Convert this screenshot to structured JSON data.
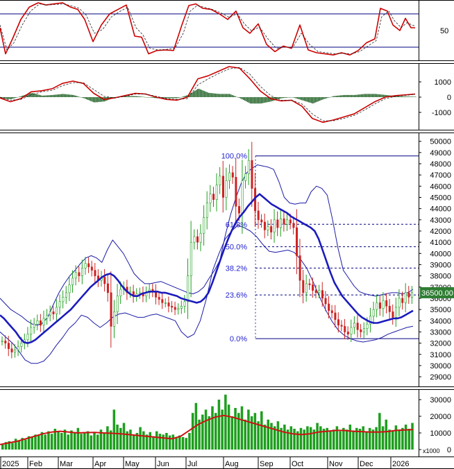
{
  "chart_data": [
    {
      "panel": "stochastic",
      "type": "line",
      "y_ticks": [
        "50"
      ],
      "ylim": [
        0,
        100
      ],
      "levels": [
        80,
        20
      ],
      "series": [
        {
          "name": "%K",
          "color": "#cc0000",
          "x": [
            0,
            8,
            18,
            30,
            42,
            55,
            66,
            78,
            90,
            102,
            112,
            122,
            134,
            146,
            158,
            170,
            182,
            194,
            204,
            214,
            226,
            238,
            250,
            262,
            272,
            282,
            292,
            304,
            316,
            328,
            340,
            350,
            360,
            372,
            384,
            396,
            408,
            420,
            432,
            444,
            456,
            468,
            480,
            492,
            504,
            516,
            528,
            540,
            548,
            558,
            566,
            576,
            584,
            592,
            598
          ],
          "values": [
            55,
            8,
            35,
            70,
            92,
            100,
            96,
            98,
            100,
            92,
            88,
            70,
            30,
            60,
            80,
            88,
            96,
            40,
            38,
            8,
            14,
            15,
            14,
            60,
            95,
            98,
            90,
            88,
            80,
            70,
            85,
            55,
            45,
            62,
            25,
            12,
            22,
            18,
            60,
            15,
            10,
            8,
            6,
            10,
            6,
            14,
            28,
            35,
            90,
            85,
            60,
            50,
            72,
            55,
            55
          ]
        },
        {
          "name": "%D",
          "color": "#222222",
          "dashed": true,
          "x": [
            0,
            10,
            20,
            32,
            44,
            57,
            68,
            80,
            92,
            104,
            114,
            124,
            136,
            148,
            160,
            172,
            184,
            196,
            206,
            216,
            228,
            240,
            252,
            264,
            274,
            284,
            294,
            306,
            318,
            330,
            342,
            352,
            362,
            374,
            386,
            398,
            410,
            422,
            434,
            446,
            458,
            470,
            482,
            494,
            506,
            518,
            530,
            542,
            550,
            560,
            568,
            578,
            586,
            594,
            598
          ],
          "values": [
            60,
            15,
            28,
            60,
            85,
            98,
            96,
            97,
            98,
            94,
            90,
            78,
            45,
            52,
            74,
            84,
            92,
            55,
            42,
            18,
            15,
            16,
            18,
            45,
            85,
            95,
            92,
            88,
            82,
            74,
            80,
            62,
            50,
            56,
            35,
            18,
            20,
            20,
            45,
            25,
            12,
            10,
            8,
            9,
            8,
            12,
            22,
            32,
            75,
            85,
            68,
            55,
            64,
            60,
            58
          ]
        }
      ]
    },
    {
      "panel": "macd",
      "type": "line",
      "y_ticks": [
        "1000",
        "0",
        "-1000"
      ],
      "ylim": [
        -2000,
        2000
      ],
      "series": [
        {
          "name": "MACD",
          "color": "#cc0000",
          "x": [
            0,
            15,
            30,
            45,
            60,
            75,
            90,
            105,
            120,
            135,
            150,
            165,
            180,
            195,
            210,
            225,
            240,
            255,
            270,
            285,
            300,
            315,
            330,
            345,
            360,
            375,
            390,
            405,
            420,
            435,
            450,
            465,
            480,
            495,
            510,
            525,
            540,
            555,
            570,
            585,
            598
          ],
          "values": [
            -50,
            -300,
            -100,
            350,
            420,
            550,
            900,
            1050,
            900,
            250,
            -150,
            -50,
            100,
            250,
            200,
            0,
            -150,
            -200,
            0,
            1200,
            1400,
            1700,
            2000,
            1900,
            1200,
            400,
            -100,
            -250,
            -200,
            -600,
            -1400,
            -1650,
            -1500,
            -1300,
            -1100,
            -700,
            -300,
            0,
            100,
            150,
            200
          ]
        },
        {
          "name": "Signal",
          "color": "#222222",
          "dashed": true,
          "x": [
            0,
            15,
            30,
            45,
            60,
            75,
            90,
            105,
            120,
            135,
            150,
            165,
            180,
            195,
            210,
            225,
            240,
            255,
            270,
            285,
            300,
            315,
            330,
            345,
            360,
            375,
            390,
            405,
            420,
            435,
            450,
            465,
            480,
            495,
            510,
            525,
            540,
            555,
            570,
            585,
            598
          ],
          "values": [
            0,
            -200,
            -150,
            150,
            350,
            450,
            750,
            950,
            950,
            500,
            50,
            -50,
            50,
            200,
            200,
            50,
            -100,
            -150,
            -100,
            800,
            1200,
            1550,
            1850,
            1950,
            1500,
            700,
            100,
            -200,
            -200,
            -450,
            -1100,
            -1550,
            -1550,
            -1400,
            -1200,
            -850,
            -450,
            -100,
            50,
            120,
            180
          ]
        }
      ]
    },
    {
      "panel": "price",
      "type": "candlestick",
      "y_ticks": [
        "50000",
        "49000",
        "48000",
        "47000",
        "46000",
        "45000",
        "44000",
        "43000",
        "42000",
        "41000",
        "40000",
        "39000",
        "38000",
        "37000",
        "36000",
        "35000",
        "34000",
        "33000",
        "32000",
        "31000",
        "30000",
        "29000"
      ],
      "ylim": [
        28200,
        50600
      ],
      "last_price_label": "36500.00",
      "last_price": 36500,
      "fibonacci": {
        "labels": [
          "100.0%",
          "61.8%",
          "50.0%",
          "38.2%",
          "23.6%",
          "0.0%"
        ],
        "levels": [
          48700,
          42600,
          40600,
          38700,
          36300,
          32400
        ]
      },
      "close": [
        32200,
        32000,
        31500,
        31200,
        31400,
        31700,
        32000,
        32300,
        32800,
        33400,
        33700,
        34000,
        33600,
        34200,
        34500,
        34800,
        34600,
        35200,
        35700,
        36100,
        36500,
        37200,
        37800,
        38300,
        38000,
        38700,
        39100,
        38800,
        38500,
        38000,
        37600,
        37900,
        37300,
        36500,
        33500,
        34800,
        36200,
        36800,
        37000,
        36500,
        36600,
        36200,
        36400,
        36500,
        36200,
        36500,
        36800,
        36600,
        36100,
        35900,
        35600,
        35600,
        35300,
        35200,
        35000,
        35100,
        35300,
        35700,
        38000,
        41000,
        41500,
        41000,
        41800,
        43200,
        44500,
        45300,
        44800,
        46100,
        46900,
        45000,
        46500,
        47200,
        46800,
        44200,
        43600,
        46500,
        47100,
        48300,
        45800,
        43800,
        43000,
        42800,
        42100,
        42400,
        41900,
        43000,
        42300,
        43100,
        42600,
        43000,
        42700,
        42300,
        39800,
        37600,
        36500,
        37300,
        37200,
        36700,
        36500,
        36700,
        36000,
        35500,
        34900,
        34700,
        34100,
        33600,
        33500,
        33000,
        32800,
        33400,
        33800,
        33200,
        33000,
        33300,
        33700,
        34400,
        35000,
        35600,
        35100,
        35800,
        35300,
        34800,
        34300,
        35200,
        36000,
        35600,
        36500,
        36100,
        36500
      ],
      "ma20": [
        34500,
        34200,
        33800,
        33400,
        33000,
        32500,
        32100,
        32000,
        32100,
        32300,
        32600,
        32900,
        33200,
        33500,
        33800,
        34100,
        34400,
        34700,
        35000,
        35400,
        35800,
        36200,
        36600,
        37000,
        37300,
        37600,
        37900,
        38100,
        38200,
        38000,
        37600,
        37100,
        36700,
        36400,
        36200,
        36200,
        36400,
        36500,
        36600,
        36600,
        36600,
        36500,
        36500,
        36400,
        36300,
        36200,
        36000,
        35900,
        35800,
        35700,
        35600,
        35700,
        36000,
        36500,
        37400,
        38400,
        39400,
        40400,
        41300,
        42100,
        42800,
        43300,
        43700,
        44200,
        44600,
        45000,
        45300,
        45000,
        44700,
        44400,
        44200,
        44000,
        43800,
        43600,
        43300,
        43100,
        42900,
        42700,
        42500,
        42300,
        42000,
        41300,
        40300,
        39300,
        38300,
        37400,
        36800,
        36200,
        35800,
        35400,
        35000,
        34600,
        34300,
        34100,
        33900,
        33800,
        33800,
        33900,
        34000,
        34100,
        34200,
        34200,
        34300,
        34500,
        34700,
        34900
      ],
      "bb_upper": [
        36000,
        35500,
        35000,
        34700,
        34400,
        34000,
        33700,
        33600,
        33800,
        34400,
        35500,
        36500,
        37300,
        38000,
        38500,
        39100,
        39600,
        39800,
        39600,
        39200,
        40300,
        41200,
        40600,
        40000,
        39100,
        38200,
        37700,
        37300,
        37300,
        37400,
        37500,
        37300,
        37100,
        36900,
        36700,
        36500,
        36400,
        36600,
        37000,
        37800,
        38500,
        39400,
        41600,
        43500,
        45000,
        46300,
        47200,
        47600,
        47900,
        47800,
        47700,
        47500,
        46400,
        45000,
        44500,
        44400,
        44500,
        44500,
        45500,
        46000,
        45800,
        45200,
        43000,
        40500,
        38500,
        37800,
        37100,
        36600,
        36400,
        36300,
        36200,
        36300,
        36400,
        36500,
        36500,
        36400,
        36500,
        36800
      ],
      "bb_lower": [
        33000,
        32500,
        32000,
        31300,
        30500,
        30200,
        30200,
        30400,
        31000,
        31800,
        32500,
        33300,
        33800,
        34500,
        34300,
        33800,
        33400,
        33800,
        34300,
        34600,
        34700,
        34500,
        34300,
        34300,
        34500,
        34600,
        34400,
        34200,
        34000,
        33000,
        32500,
        32800,
        34000,
        36000,
        38500,
        40000,
        41300,
        42000,
        42500,
        42300,
        42000,
        41500,
        40800,
        40200,
        40100,
        40200,
        40300,
        40100,
        39500,
        38700,
        37500,
        36200,
        35000,
        34000,
        33200,
        32700,
        32400,
        32200,
        32100,
        32200,
        32300,
        32500,
        32800,
        33000,
        33200,
        33400,
        33500
      ]
    },
    {
      "panel": "volume",
      "type": "bar",
      "y_ticks": [
        "30000",
        "20000",
        "10000",
        "0"
      ],
      "y_unit_label": "x1000",
      "ylim": [
        0,
        35000
      ],
      "x_tick_labels": [
        "2025",
        "Feb",
        "Mar",
        "Apr",
        "May",
        "Jun",
        "Jul",
        "Aug",
        "Sep",
        "Oct",
        "Nov",
        "Dec",
        "2026"
      ],
      "values": [
        3000,
        4500,
        5000,
        4000,
        6500,
        5500,
        7000,
        6000,
        8000,
        7500,
        9000,
        8500,
        10500,
        9000,
        11000,
        9500,
        12500,
        11000,
        10000,
        12000,
        9000,
        11500,
        10500,
        13000,
        9500,
        10000,
        11000,
        8500,
        10000,
        9000,
        12000,
        10000,
        14000,
        11500,
        24000,
        15000,
        13000,
        16000,
        11000,
        12000,
        9000,
        10000,
        13500,
        11000,
        9000,
        10500,
        8000,
        11000,
        9500,
        9000,
        10000,
        8500,
        9000,
        7500,
        8500,
        7500,
        7000,
        10000,
        22000,
        28000,
        18000,
        21000,
        24000,
        20000,
        26000,
        22000,
        30000,
        24000,
        33000,
        27000,
        20000,
        25000,
        22000,
        26000,
        18000,
        24000,
        20000,
        22000,
        17000,
        23000,
        15000,
        18000,
        16000,
        14000,
        17000,
        13000,
        15000,
        12000,
        14000,
        12500,
        11000,
        13000,
        12000,
        14000,
        13500,
        12000,
        16000,
        14000,
        12500,
        13000,
        11500,
        12000,
        14000,
        11000,
        13000,
        12000,
        15000,
        11500,
        13000,
        12500,
        14000,
        11000,
        13000,
        12000,
        13500,
        22000,
        14000,
        18000,
        12000,
        11000,
        14500,
        12000,
        13000,
        15000,
        12500,
        16000
      ],
      "ma": [
        3000,
        4000,
        5000,
        6500,
        8000,
        9500,
        10500,
        11000,
        10500,
        10000,
        10200,
        10300,
        10000,
        9800,
        9500,
        9000,
        8500,
        8000,
        7500,
        7000,
        6500,
        8000,
        11500,
        15000,
        17500,
        19500,
        20500,
        19500,
        18000,
        16500,
        15000,
        13500,
        12000,
        10500,
        9500,
        9000,
        9500,
        10500,
        11000,
        11500,
        11500,
        11000,
        10800,
        10500,
        10500,
        10800,
        11500,
        11800,
        12000
      ]
    }
  ]
}
